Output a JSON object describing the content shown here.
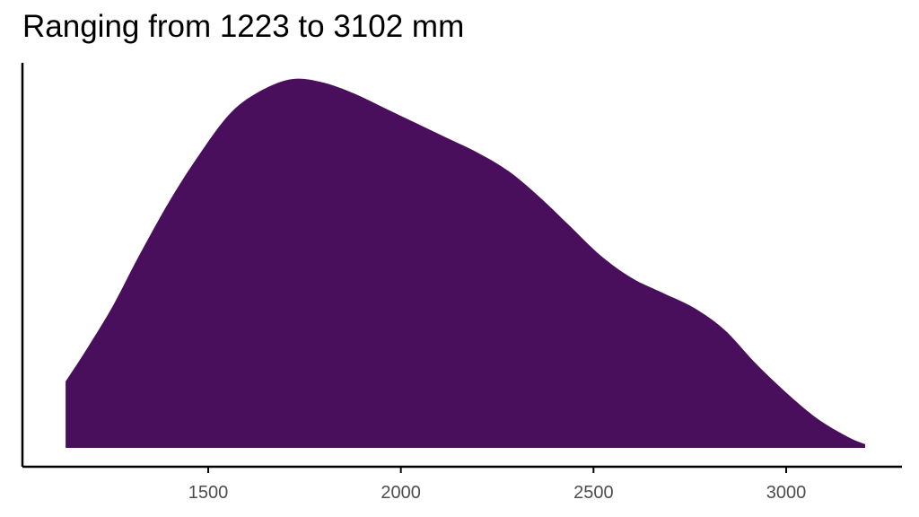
{
  "colors": {
    "fill": "#4a0f5c",
    "axis": "#000000",
    "tick_text": "#4d4d4d",
    "background": "#ffffff"
  },
  "chart_data": {
    "type": "area",
    "title": "Ranging from 1223 to 3102 mm",
    "xlabel": "",
    "ylabel": "",
    "xlim": [
      1000,
      3300
    ],
    "ylim": [
      0,
      1
    ],
    "grid": false,
    "legend": "none",
    "x_ticks": [
      {
        "value": 1500,
        "label": "1500"
      },
      {
        "value": 2000,
        "label": "2000"
      },
      {
        "value": 2500,
        "label": "2500"
      },
      {
        "value": 3000,
        "label": "3000"
      }
    ],
    "baseline": 0,
    "series": [
      {
        "x": [
          1130,
          1180,
          1250,
          1320,
          1400,
          1480,
          1560,
          1640,
          1720,
          1800,
          1880,
          1960,
          2040,
          2120,
          2200,
          2280,
          2360,
          2440,
          2520,
          2600,
          2680,
          2760,
          2840,
          2920,
          3000,
          3080,
          3160,
          3205
        ],
        "y": [
          0.18,
          0.26,
          0.38,
          0.52,
          0.67,
          0.8,
          0.91,
          0.97,
          1.0,
          0.99,
          0.96,
          0.92,
          0.88,
          0.84,
          0.8,
          0.75,
          0.68,
          0.6,
          0.52,
          0.46,
          0.42,
          0.38,
          0.32,
          0.23,
          0.15,
          0.08,
          0.03,
          0.01
        ]
      }
    ]
  }
}
